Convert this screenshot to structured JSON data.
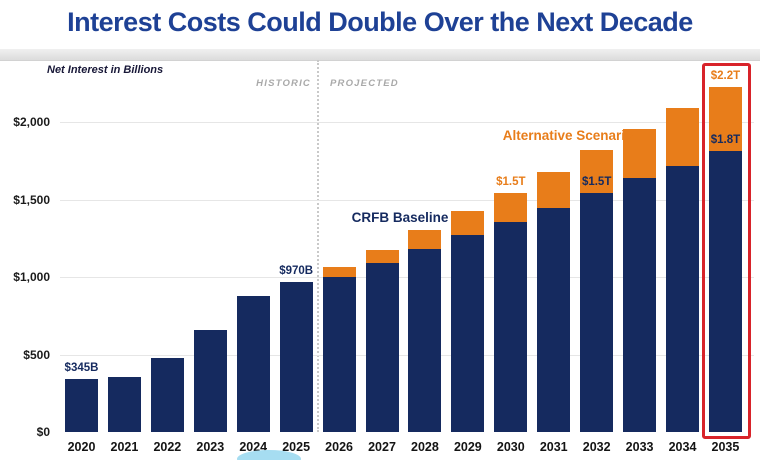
{
  "slide": {
    "title": "Interest Costs Could Double Over the Next Decade"
  },
  "chart_data": {
    "type": "bar",
    "stacked": true,
    "title": "Interest Costs Could Double Over the Next Decade",
    "note": "Net Interest in Billions",
    "unit": "billions of dollars",
    "categories": [
      "2020",
      "2021",
      "2022",
      "2023",
      "2024",
      "2025",
      "2026",
      "2027",
      "2028",
      "2029",
      "2030",
      "2031",
      "2032",
      "2033",
      "2034",
      "2035"
    ],
    "series": [
      {
        "name": "CRFB Baseline",
        "color": "#152a5f",
        "values": [
          345,
          352,
          475,
          660,
          880,
          970,
          1000,
          1090,
          1180,
          1270,
          1355,
          1445,
          1540,
          1640,
          1715,
          1815
        ]
      },
      {
        "name": "Alternative Scenario",
        "color": "#e87d1a",
        "values": [
          0,
          0,
          0,
          0,
          0,
          0,
          65,
          85,
          125,
          155,
          185,
          230,
          280,
          315,
          375,
          410
        ]
      }
    ],
    "ylim": [
      0,
      2250
    ],
    "yticks": [
      {
        "label": "$0",
        "value": 0
      },
      {
        "label": "$500",
        "value": 500
      },
      {
        "label": "$1,000",
        "value": 1000
      },
      {
        "label": "$1,500",
        "value": 1500
      },
      {
        "label": "$2,000",
        "value": 2000
      }
    ],
    "grid": true,
    "regions": [
      {
        "label": "HISTORIC",
        "years": "2020-2025"
      },
      {
        "label": "PROJECTED",
        "years": "2026-2035"
      }
    ],
    "annotations": [
      {
        "year": "2020",
        "text": "$345B",
        "anchor": "baseline",
        "color": "#152a5f"
      },
      {
        "year": "2025",
        "text": "$970B",
        "anchor": "baseline",
        "color": "#152a5f"
      },
      {
        "year": "2030",
        "text": "$1.5T",
        "anchor": "total",
        "color": "#e87d1a"
      },
      {
        "year": "2032",
        "text": "$1.5T",
        "anchor": "baseline",
        "color": "#152a5f"
      },
      {
        "year": "2035",
        "text": "$1.8T",
        "anchor": "baseline",
        "color": "#152a5f"
      },
      {
        "year": "2035",
        "text": "$2.2T",
        "anchor": "total",
        "color": "#e87d1a"
      }
    ],
    "highlight_year": "2035"
  },
  "colors": {
    "title": "#1e4195",
    "baseline_bar": "#152a5f",
    "alternative_bar": "#e87d1a",
    "highlight_box": "#d8232a",
    "region_label": "#a9a9a9",
    "gridline": "#e6e6e6",
    "axis_text": "#1b1b1b"
  }
}
